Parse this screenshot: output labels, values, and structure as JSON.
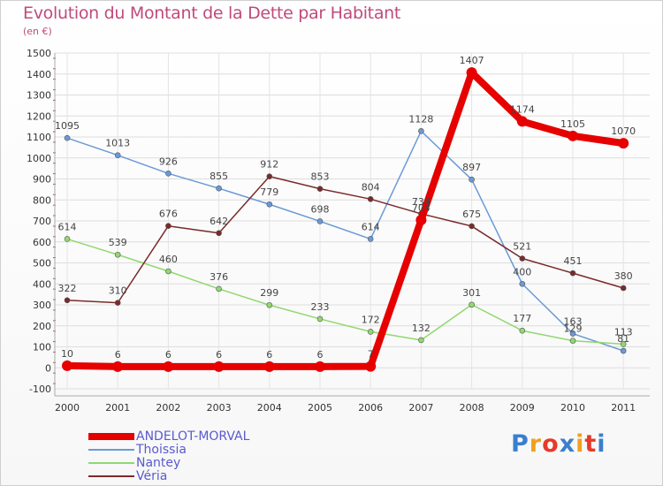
{
  "title": "Evolution du Montant de la Dette par Habitant",
  "subtitle": "(en €)",
  "logo": {
    "text": "Proxiti",
    "letters": [
      "P",
      "r",
      "o",
      "x",
      "i",
      "t",
      "i"
    ],
    "colors": [
      "#3a7fd0",
      "#f0a020",
      "#e63a2a",
      "#3a7fd0",
      "#f0a020",
      "#e63a2a",
      "#3a7fd0"
    ]
  },
  "chart_data": {
    "type": "line",
    "title": "Evolution du Montant de la Dette par Habitant",
    "ylabel": "(en €)",
    "xlabel": "",
    "ylim": [
      -100,
      1500
    ],
    "yticks": [
      -100,
      0,
      100,
      200,
      300,
      400,
      500,
      600,
      700,
      800,
      900,
      1000,
      1100,
      1200,
      1300,
      1400,
      1500
    ],
    "x": [
      "2000",
      "2001",
      "2002",
      "2003",
      "2004",
      "2005",
      "2006",
      "2007",
      "2008",
      "2009",
      "2010",
      "2011"
    ],
    "grid": true,
    "series": [
      {
        "name": "ANDELOT-MORVAL",
        "color": "#e60000",
        "width": 8,
        "marker": 6,
        "values": [
          10,
          6,
          6,
          6,
          6,
          6,
          7,
          704,
          1407,
          1174,
          1105,
          1070
        ],
        "labels": [
          "10",
          "6",
          "6",
          "6",
          "6",
          "6",
          "7",
          "704",
          "1407",
          "1174",
          "1105",
          "1070"
        ]
      },
      {
        "name": "Thoissia",
        "color": "#6a9ad6",
        "width": 1.5,
        "marker": 3,
        "values": [
          1095,
          1013,
          926,
          855,
          779,
          698,
          614,
          1128,
          897,
          400,
          163,
          81
        ],
        "labels": [
          "1095",
          "1013",
          "926",
          "855",
          "779",
          "698",
          "614",
          "1128",
          "897",
          "400",
          "163",
          "81"
        ]
      },
      {
        "name": "Nantey",
        "color": "#90d870",
        "width": 1.5,
        "marker": 3,
        "values": [
          614,
          539,
          460,
          376,
          299,
          233,
          172,
          132,
          301,
          177,
          129,
          113
        ],
        "labels": [
          "614",
          "539",
          "460",
          "376",
          "299",
          "233",
          "172",
          "132",
          "301",
          "177",
          "129",
          "113"
        ]
      },
      {
        "name": "Véria",
        "color": "#7a2a2a",
        "width": 1.5,
        "marker": 3,
        "values": [
          322,
          310,
          676,
          642,
          912,
          853,
          804,
          734,
          675,
          521,
          451,
          380
        ],
        "labels": [
          "322",
          "310",
          "676",
          "642",
          "912",
          "853",
          "804",
          "734",
          "675",
          "521",
          "451",
          "380"
        ]
      }
    ],
    "legend_position": "bottom-left"
  }
}
